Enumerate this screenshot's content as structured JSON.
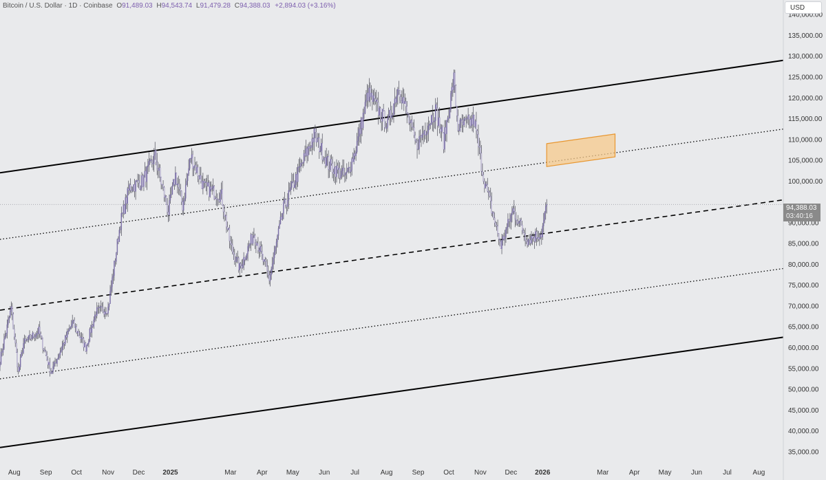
{
  "header": {
    "symbol": "Bitcoin / U.S. Dollar",
    "interval": "1D",
    "exchange": "Coinbase",
    "open_label": "O",
    "open": "91,489.03",
    "high_label": "H",
    "high": "94,543.74",
    "low_label": "L",
    "low": "91,479.28",
    "close_label": "C",
    "close": "94,388.03",
    "change": "+2,894.03 (+3.16%)"
  },
  "currency": "USD",
  "last_price": {
    "value": "94,388.03",
    "countdown": "03:40:16"
  },
  "colors": {
    "background": "#e9eaec",
    "candle": "#7b6fa8",
    "wick": "#4a4a56",
    "channel_line": "#000000",
    "highlight_fill": "#f6c98c",
    "highlight_stroke": "#e8962f",
    "last_price_tag": "#8a8a8a"
  },
  "chart_data": {
    "type": "candlestick",
    "title": "Bitcoin / U.S. Dollar · 1D · Coinbase",
    "ylabel": "USD",
    "ylim": [
      32500,
      143500
    ],
    "y_ticks": [
      {
        "value": 140000,
        "label": "140,000.00"
      },
      {
        "value": 135000,
        "label": "135,000.00"
      },
      {
        "value": 130000,
        "label": "130,000.00"
      },
      {
        "value": 125000,
        "label": "125,000.00"
      },
      {
        "value": 120000,
        "label": "120,000.00"
      },
      {
        "value": 115000,
        "label": "115,000.00"
      },
      {
        "value": 110000,
        "label": "110,000.00"
      },
      {
        "value": 105000,
        "label": "105,000.00"
      },
      {
        "value": 100000,
        "label": "100,000.00"
      },
      {
        "value": 90000,
        "label": "90,000.00"
      },
      {
        "value": 85000,
        "label": "85,000.00"
      },
      {
        "value": 80000,
        "label": "80,000.00"
      },
      {
        "value": 75000,
        "label": "75,000.00"
      },
      {
        "value": 70000,
        "label": "70,000.00"
      },
      {
        "value": 65000,
        "label": "65,000.00"
      },
      {
        "value": 60000,
        "label": "60,000.00"
      },
      {
        "value": 55000,
        "label": "55,000.00"
      },
      {
        "value": 50000,
        "label": "50,000.00"
      },
      {
        "value": 45000,
        "label": "45,000.00"
      },
      {
        "value": 40000,
        "label": "40,000.00"
      },
      {
        "value": 35000,
        "label": "35,000.00"
      }
    ],
    "x_range": [
      "2024-07-18",
      "2026-08-25"
    ],
    "x_ticks": [
      {
        "date": "2024-08-01",
        "label": "Aug"
      },
      {
        "date": "2024-09-01",
        "label": "Sep"
      },
      {
        "date": "2024-10-01",
        "label": "Oct"
      },
      {
        "date": "2024-11-01",
        "label": "Nov"
      },
      {
        "date": "2024-12-01",
        "label": "Dec"
      },
      {
        "date": "2025-01-01",
        "label": "2025"
      },
      {
        "date": "2025-03-01",
        "label": "Mar"
      },
      {
        "date": "2025-04-01",
        "label": "Apr"
      },
      {
        "date": "2025-05-01",
        "label": "May"
      },
      {
        "date": "2025-06-01",
        "label": "Jun"
      },
      {
        "date": "2025-07-01",
        "label": "Jul"
      },
      {
        "date": "2025-08-01",
        "label": "Aug"
      },
      {
        "date": "2025-09-01",
        "label": "Sep"
      },
      {
        "date": "2025-10-01",
        "label": "Oct"
      },
      {
        "date": "2025-11-01",
        "label": "Nov"
      },
      {
        "date": "2025-12-01",
        "label": "Dec"
      },
      {
        "date": "2026-01-01",
        "label": "2026"
      },
      {
        "date": "2026-03-01",
        "label": "Mar"
      },
      {
        "date": "2026-04-01",
        "label": "Apr"
      },
      {
        "date": "2026-05-01",
        "label": "May"
      },
      {
        "date": "2026-06-01",
        "label": "Jun"
      },
      {
        "date": "2026-07-01",
        "label": "Jul"
      },
      {
        "date": "2026-08-01",
        "label": "Aug"
      }
    ],
    "price_anchors": [
      {
        "date": "2024-07-18",
        "close": 57000
      },
      {
        "date": "2024-07-29",
        "close": 69500
      },
      {
        "date": "2024-08-05",
        "close": 54000
      },
      {
        "date": "2024-08-10",
        "close": 61000
      },
      {
        "date": "2024-08-25",
        "close": 64000
      },
      {
        "date": "2024-09-06",
        "close": 54000
      },
      {
        "date": "2024-09-27",
        "close": 66000
      },
      {
        "date": "2024-10-10",
        "close": 60000
      },
      {
        "date": "2024-10-20",
        "close": 68500
      },
      {
        "date": "2024-11-01",
        "close": 69500
      },
      {
        "date": "2024-11-13",
        "close": 90000
      },
      {
        "date": "2024-11-22",
        "close": 98500
      },
      {
        "date": "2024-12-05",
        "close": 100000
      },
      {
        "date": "2024-12-17",
        "close": 106000
      },
      {
        "date": "2024-12-30",
        "close": 92500
      },
      {
        "date": "2025-01-06",
        "close": 101500
      },
      {
        "date": "2025-01-13",
        "close": 94000
      },
      {
        "date": "2025-01-21",
        "close": 106000
      },
      {
        "date": "2025-02-03",
        "close": 98500
      },
      {
        "date": "2025-02-20",
        "close": 96500
      },
      {
        "date": "2025-03-01",
        "close": 84500
      },
      {
        "date": "2025-03-10",
        "close": 79000
      },
      {
        "date": "2025-03-24",
        "close": 87500
      },
      {
        "date": "2025-04-08",
        "close": 76500
      },
      {
        "date": "2025-04-22",
        "close": 93500
      },
      {
        "date": "2025-05-08",
        "close": 103000
      },
      {
        "date": "2025-05-22",
        "close": 111000
      },
      {
        "date": "2025-06-05",
        "close": 104000
      },
      {
        "date": "2025-06-22",
        "close": 101000
      },
      {
        "date": "2025-07-01",
        "close": 107000
      },
      {
        "date": "2025-07-14",
        "close": 121000
      },
      {
        "date": "2025-08-02",
        "close": 113500
      },
      {
        "date": "2025-08-13",
        "close": 123000
      },
      {
        "date": "2025-08-30",
        "close": 108500
      },
      {
        "date": "2025-09-18",
        "close": 117000
      },
      {
        "date": "2025-09-26",
        "close": 109500
      },
      {
        "date": "2025-10-06",
        "close": 124500
      },
      {
        "date": "2025-10-10",
        "close": 113000
      },
      {
        "date": "2025-10-26",
        "close": 114500
      },
      {
        "date": "2025-11-04",
        "close": 101000
      },
      {
        "date": "2025-11-21",
        "close": 84500
      },
      {
        "date": "2025-12-03",
        "close": 93000
      },
      {
        "date": "2025-12-17",
        "close": 86000
      },
      {
        "date": "2025-12-31",
        "close": 87500
      },
      {
        "date": "2026-01-05",
        "close": 94388.03
      }
    ],
    "trend_lines": [
      {
        "name": "",
        "style": "solid",
        "start": {
          "date": "2024-07-18",
          "value": 102000
        },
        "end": {
          "date": "2026-08-25",
          "value": 129000
        }
      },
      {
        "name": "",
        "style": "dotted",
        "start": {
          "date": "2024-07-18",
          "value": 86000
        },
        "end": {
          "date": "2026-08-25",
          "value": 112500
        }
      },
      {
        "name": "",
        "style": "dashed",
        "start": {
          "date": "2024-07-18",
          "value": 69000
        },
        "end": {
          "date": "2026-08-25",
          "value": 95500
        }
      },
      {
        "name": "",
        "style": "dotted",
        "start": {
          "date": "2024-07-18",
          "value": 52500
        },
        "end": {
          "date": "2026-08-25",
          "value": 79000
        }
      },
      {
        "name": "",
        "style": "solid",
        "start": {
          "date": "2024-07-18",
          "value": 36000
        },
        "end": {
          "date": "2026-08-25",
          "value": 62500
        }
      }
    ],
    "highlight_zone": {
      "start_date": "2026-01-05",
      "end_date": "2026-03-13",
      "low": 103500,
      "high": 109000
    },
    "last_price_line": 94388.03,
    "grid": false,
    "legend": "none"
  }
}
